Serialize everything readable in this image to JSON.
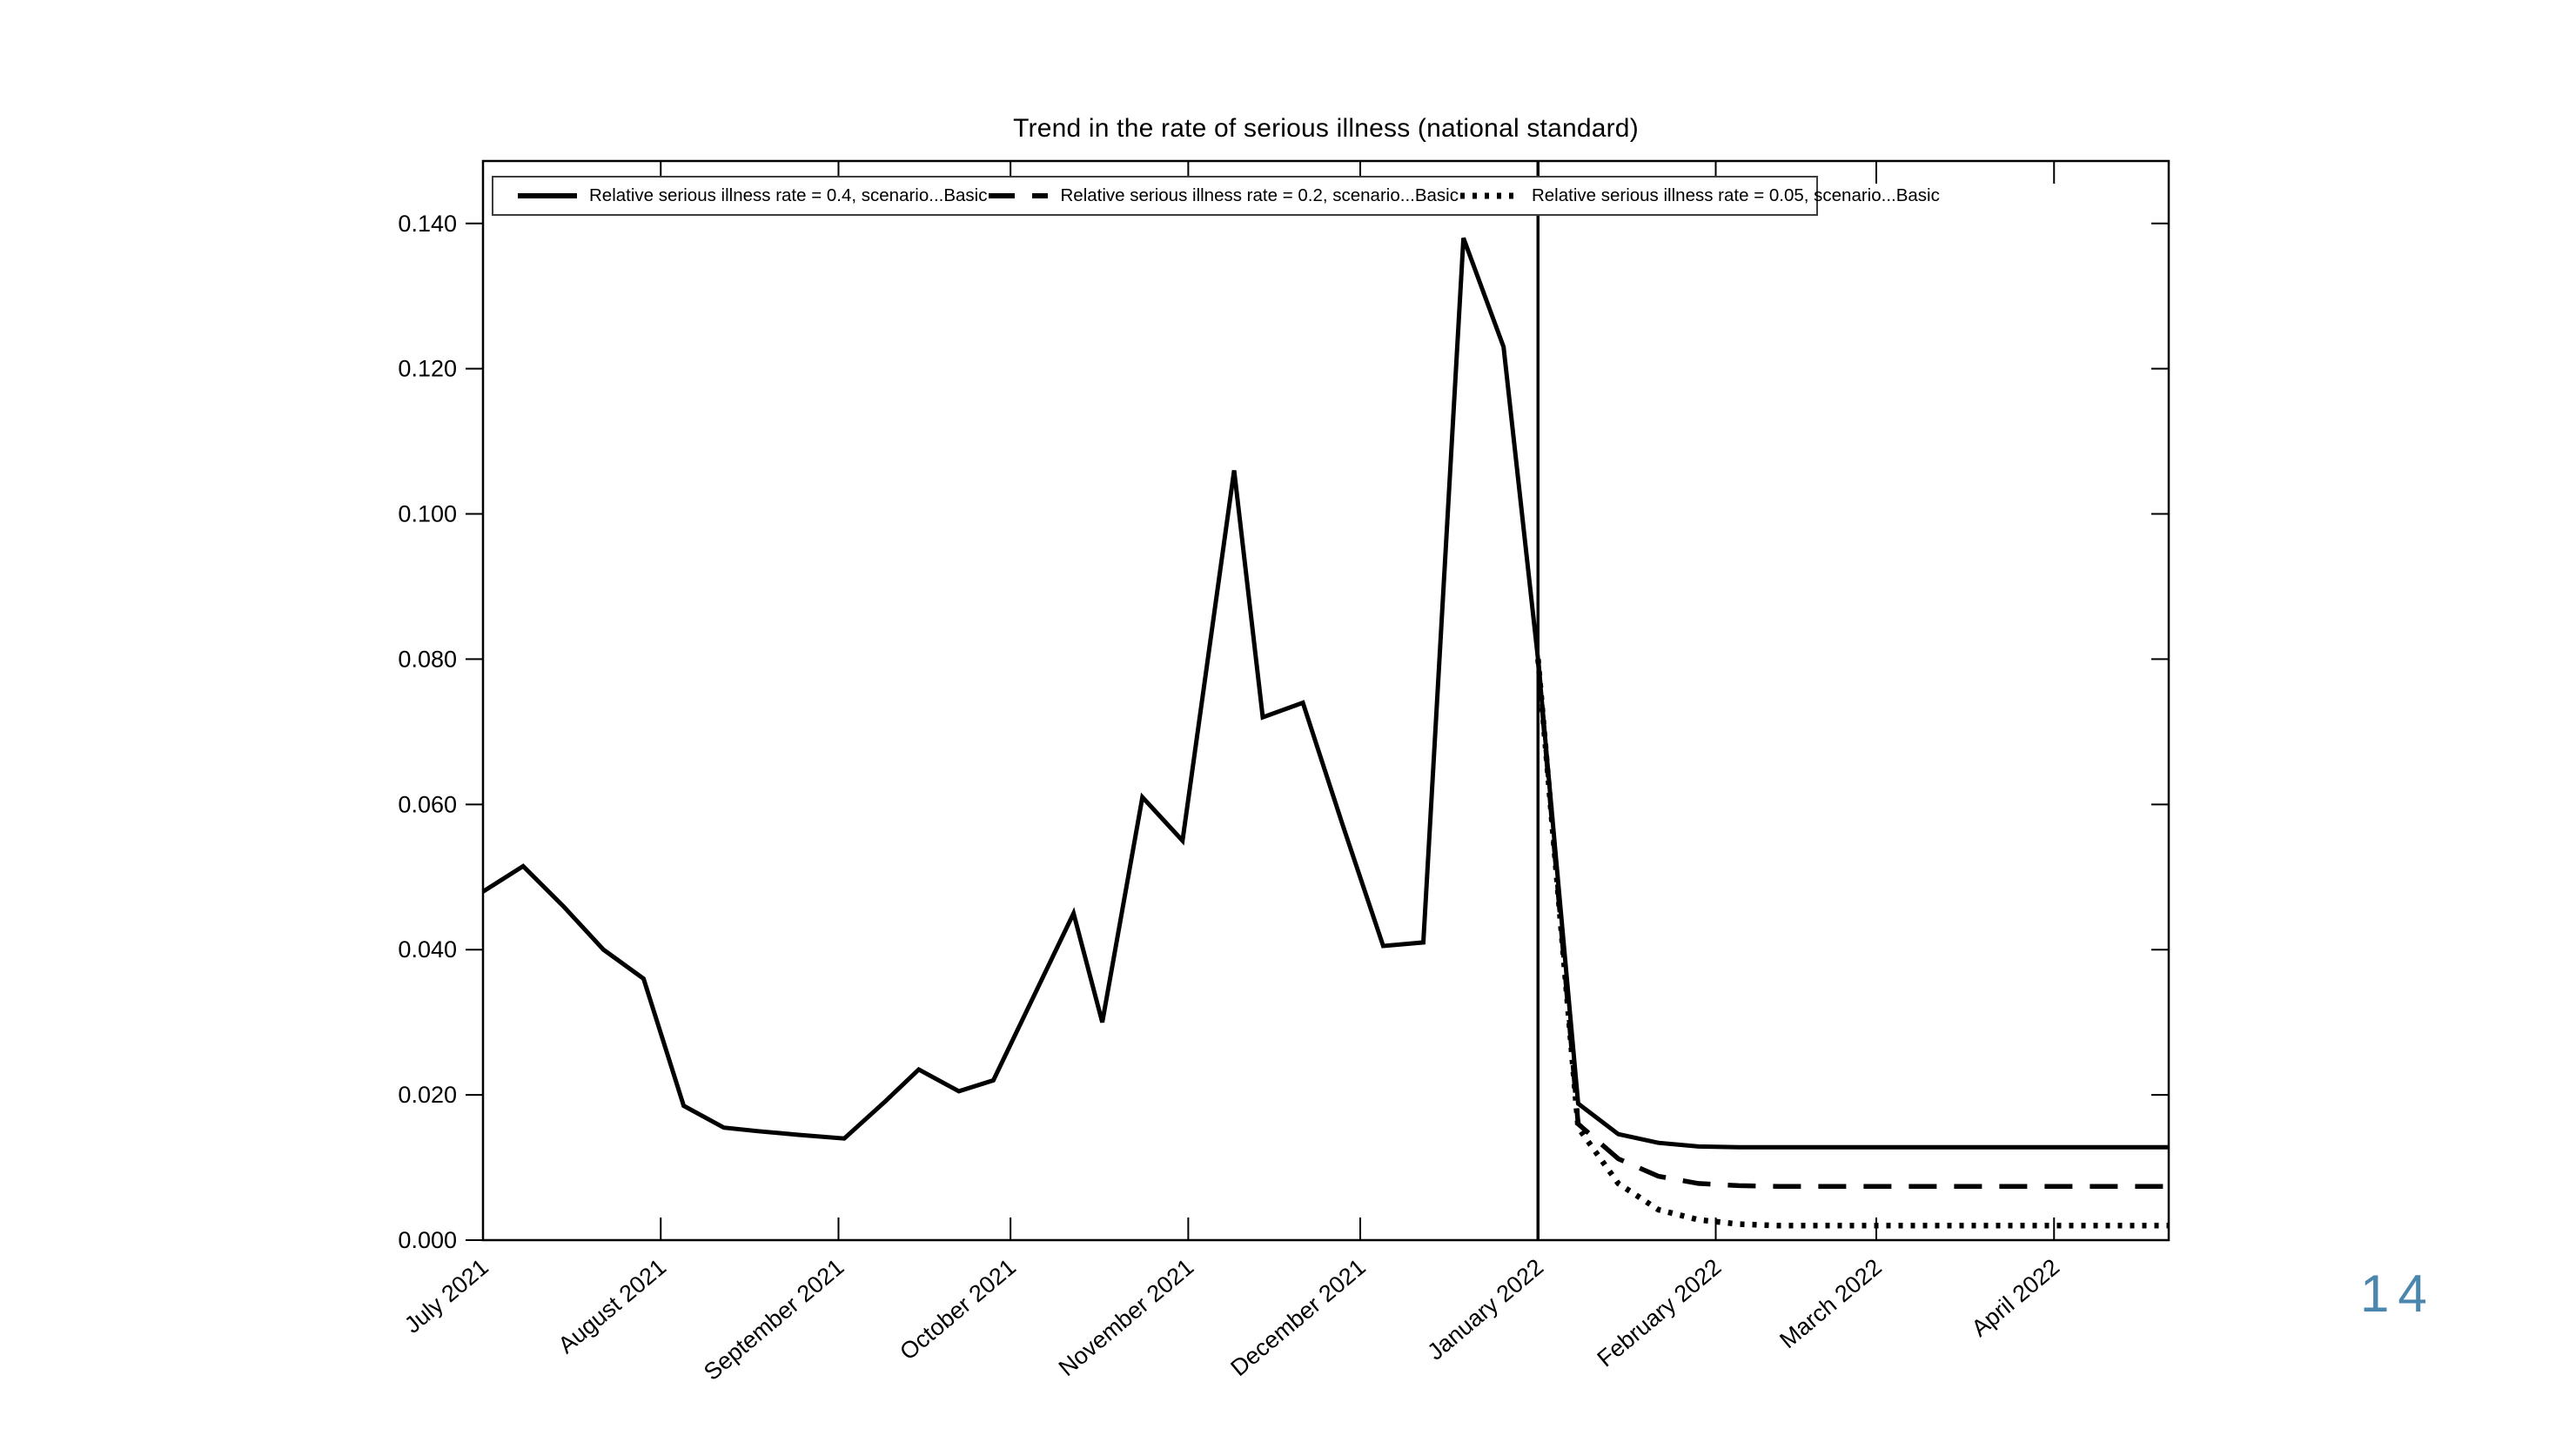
{
  "page": {
    "page_number": "14",
    "accent_color": "#4a86ad",
    "background_color": "#ffffff"
  },
  "chart_data": {
    "type": "line",
    "title": "Trend in the rate of serious illness (national standard)",
    "xlabel": "",
    "ylabel": "",
    "grid": false,
    "legend_position": "top-inside",
    "ylim": [
      0,
      0.1486
    ],
    "y_ticks": [
      {
        "value": 0.0,
        "label": "0.000"
      },
      {
        "value": 0.02,
        "label": "0.020"
      },
      {
        "value": 0.04,
        "label": "0.040"
      },
      {
        "value": 0.06,
        "label": "0.060"
      },
      {
        "value": 0.08,
        "label": "0.080"
      },
      {
        "value": 0.1,
        "label": "0.100"
      },
      {
        "value": 0.12,
        "label": "0.120"
      },
      {
        "value": 0.14,
        "label": "0.140"
      }
    ],
    "x_domain_days": [
      0,
      294
    ],
    "x_ticks": [
      {
        "day": 0,
        "label": "July 2021"
      },
      {
        "day": 31,
        "label": "August 2021"
      },
      {
        "day": 62,
        "label": "September 2021"
      },
      {
        "day": 92,
        "label": "October 2021"
      },
      {
        "day": 123,
        "label": "November 2021"
      },
      {
        "day": 153,
        "label": "December 2021"
      },
      {
        "day": 184,
        "label": "January 2022"
      },
      {
        "day": 215,
        "label": "February 2022"
      },
      {
        "day": 243,
        "label": "March 2022"
      },
      {
        "day": 274,
        "label": "April 2022"
      }
    ],
    "forecast_start_line_day": 184,
    "legend": {
      "items": [
        {
          "label": "Relative serious illness rate = 0.4, scenario...Basic",
          "style": "solid"
        },
        {
          "label": "Relative serious illness rate = 0.2, scenario...Basic",
          "style": "dashed"
        },
        {
          "label": "Relative serious illness rate = 0.05, scenario...Basic",
          "style": "dotted"
        }
      ]
    },
    "series": [
      {
        "name": "Relative serious illness rate = 0.4, scenario...Basic",
        "style": "solid",
        "points": [
          [
            0,
            0.048
          ],
          [
            7,
            0.0515
          ],
          [
            14,
            0.046
          ],
          [
            21,
            0.04
          ],
          [
            28,
            0.036
          ],
          [
            35,
            0.0185
          ],
          [
            42,
            0.0155
          ],
          [
            48,
            0.015
          ],
          [
            55,
            0.0145
          ],
          [
            63,
            0.014
          ],
          [
            70,
            0.019
          ],
          [
            76,
            0.0235
          ],
          [
            83,
            0.0205
          ],
          [
            89,
            0.022
          ],
          [
            103,
            0.045
          ],
          [
            108,
            0.03
          ],
          [
            115,
            0.061
          ],
          [
            122,
            0.055
          ],
          [
            131,
            0.106
          ],
          [
            136,
            0.072
          ],
          [
            143,
            0.074
          ],
          [
            150,
            0.057
          ],
          [
            157,
            0.0405
          ],
          [
            164,
            0.041
          ],
          [
            171,
            0.138
          ],
          [
            178,
            0.123
          ],
          [
            184,
            0.08
          ],
          [
            191,
            0.0188
          ],
          [
            198,
            0.0146
          ],
          [
            205,
            0.0134
          ],
          [
            212,
            0.0129
          ],
          [
            219,
            0.0128
          ],
          [
            294,
            0.0128
          ]
        ]
      },
      {
        "name": "Relative serious illness rate = 0.2, scenario...Basic",
        "style": "dashed",
        "points": [
          [
            184,
            0.08
          ],
          [
            191,
            0.016
          ],
          [
            198,
            0.0112
          ],
          [
            205,
            0.0088
          ],
          [
            212,
            0.0078
          ],
          [
            219,
            0.0075
          ],
          [
            226,
            0.0074
          ],
          [
            294,
            0.0074
          ]
        ]
      },
      {
        "name": "Relative serious illness rate = 0.05, scenario...Basic",
        "style": "dotted",
        "points": [
          [
            184,
            0.08
          ],
          [
            191,
            0.0155
          ],
          [
            198,
            0.0078
          ],
          [
            205,
            0.0042
          ],
          [
            212,
            0.0028
          ],
          [
            219,
            0.0022
          ],
          [
            226,
            0.002
          ],
          [
            294,
            0.002
          ]
        ]
      }
    ]
  }
}
